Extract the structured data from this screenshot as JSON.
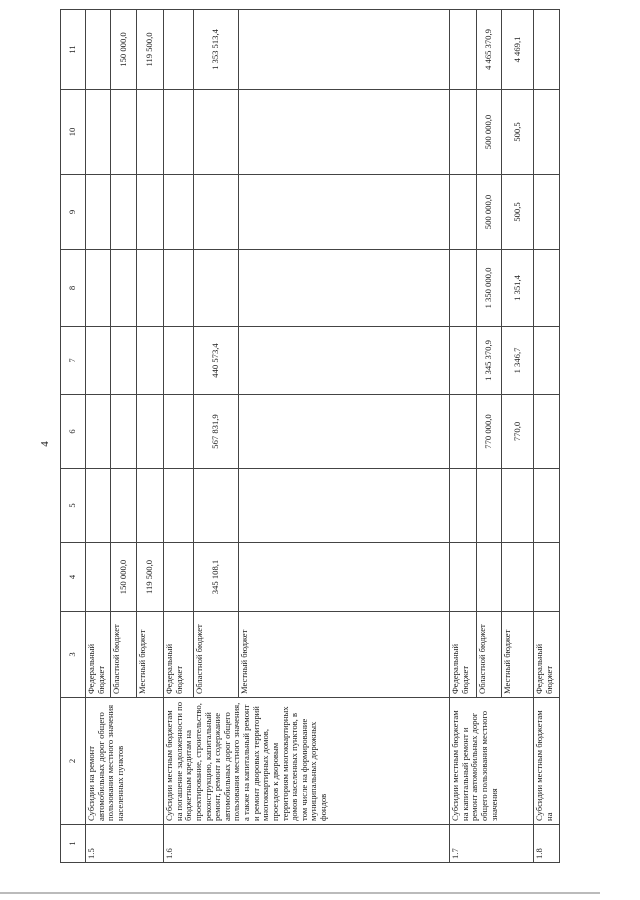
{
  "page_number": "4",
  "header": [
    "1",
    "2",
    "3",
    "4",
    "5",
    "6",
    "7",
    "8",
    "9",
    "10",
    "11"
  ],
  "rows": [
    {
      "num": "1.5",
      "name": "Субсидии на ремонт автомобильных дорог общего пользования местного значения населенных пунктов",
      "budgets": [
        {
          "label": "Федеральный бюджет",
          "values": [
            "",
            "",
            "",
            "",
            "",
            "",
            "",
            ""
          ]
        },
        {
          "label": "Областной бюджет",
          "values": [
            "150 000,0",
            "",
            "",
            "",
            "",
            "",
            "",
            "150 000,0"
          ]
        },
        {
          "label": "Местный бюджет",
          "values": [
            "119 500,0",
            "",
            "",
            "",
            "",
            "",
            "",
            "119 500,0"
          ]
        }
      ]
    },
    {
      "num": "1.6",
      "name": "Субсидии местным бюджетам на погашение задолженности по бюджетным кредитам на проектирование, строительство, реконструкцию, капитальный ремонт, ремонт и содержание автомобильных дорог общего пользования местного значения, а также на капитальный ремонт и ремонт дворовых территорий многоквартирных домов, проездов к дворовым территориям многоквартирных домов населенных пунктов, в том числе на формирование муниципальных дорожных фондов",
      "budgets": [
        {
          "label": "Федеральный бюджет",
          "values": [
            "",
            "",
            "",
            "",
            "",
            "",
            "",
            ""
          ]
        },
        {
          "label": "Областной бюджет",
          "values": [
            "345 108,1",
            "",
            "567 831,9",
            "440 573,4",
            "",
            "",
            "",
            "1 353 513,4"
          ]
        },
        {
          "label": "Местный бюджет",
          "values": [
            "",
            "",
            "",
            "",
            "",
            "",
            "",
            ""
          ]
        }
      ]
    },
    {
      "num": "1.7",
      "name": "Субсидии местным бюджетам на капитальный ремонт и ремонт автомобильных дорог общего пользования местного значения",
      "budgets": [
        {
          "label": "Федеральный бюджет",
          "values": [
            "",
            "",
            "",
            "",
            "",
            "",
            "",
            ""
          ]
        },
        {
          "label": "Областной бюджет",
          "values": [
            "",
            "",
            "770 000,0",
            "1 345 370,9",
            "1 350 000,0",
            "500 000,0",
            "500 000,0",
            "4 465 370,9"
          ]
        },
        {
          "label": "Местный бюджет",
          "values": [
            "",
            "",
            "770,0",
            "1 346,7",
            "1 351,4",
            "500,5",
            "500,5",
            "4 469,1"
          ]
        }
      ]
    },
    {
      "num": "1.8",
      "name": "Субсидии местным бюджетам на",
      "budgets": [
        {
          "label": "Федеральный бюджет",
          "values": [
            "",
            "",
            "",
            "",
            "",
            "",
            "",
            ""
          ]
        }
      ]
    }
  ]
}
